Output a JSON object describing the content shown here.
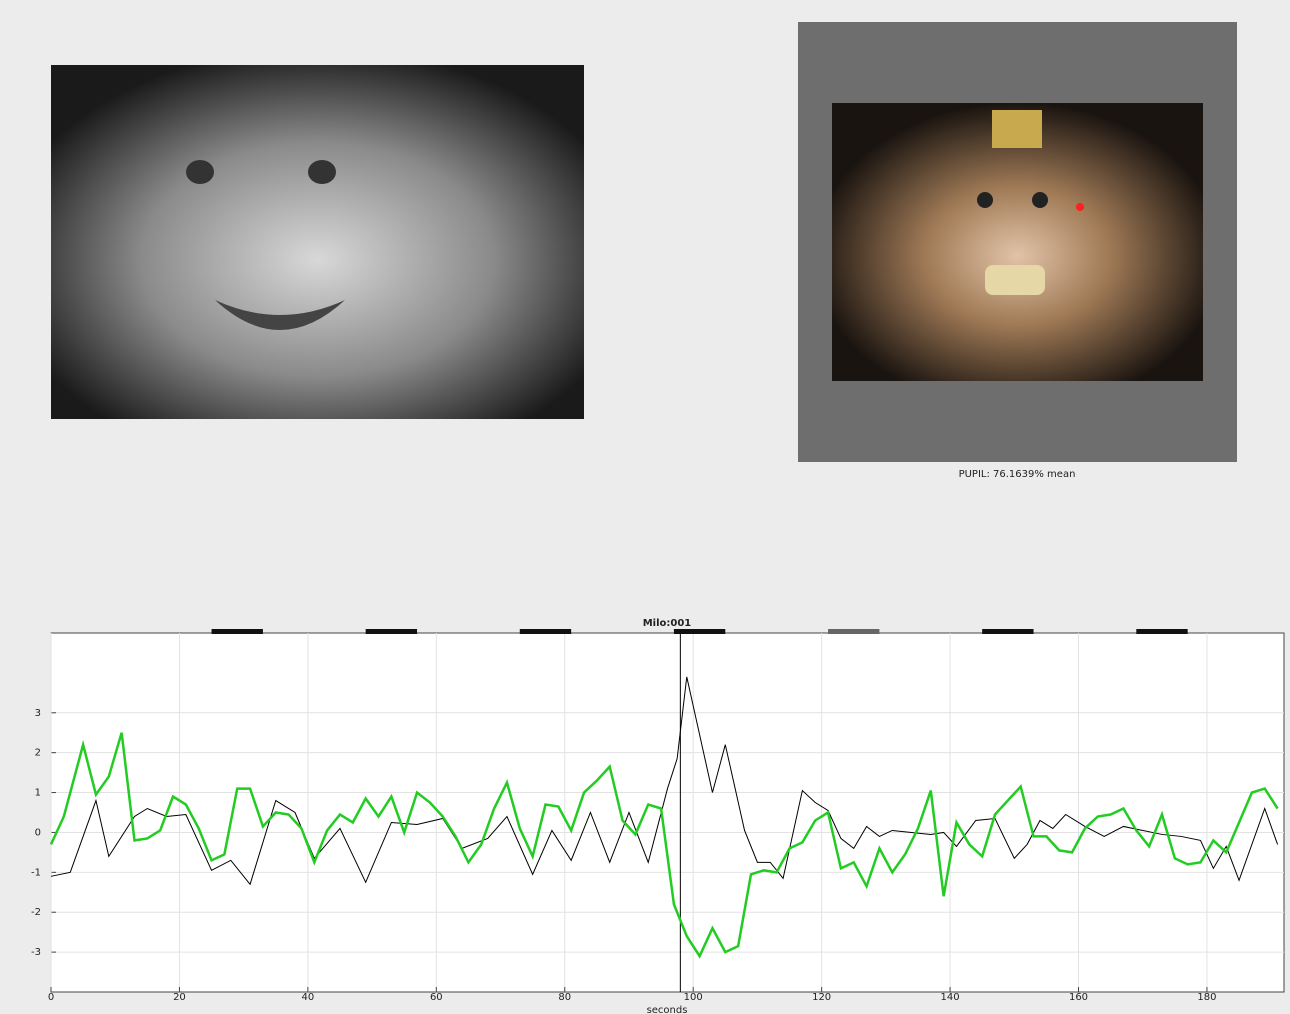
{
  "pupil_label": "PUPIL: 76.1639% mean",
  "chart_data": {
    "type": "line",
    "title": "Milo:001",
    "x_label": "seconds",
    "xlim": [
      0,
      192
    ],
    "ylim": [
      -4,
      5
    ],
    "xticks": [
      0,
      20,
      40,
      60,
      80,
      100,
      120,
      140,
      160,
      180
    ],
    "yticks": [
      -3,
      -2,
      -1,
      0,
      1,
      2,
      3
    ],
    "grid": true,
    "marker_x": 98,
    "stimuli": [
      {
        "start": 25,
        "end": 33,
        "color": "#111111"
      },
      {
        "start": 49,
        "end": 57,
        "color": "#111111"
      },
      {
        "start": 73,
        "end": 81,
        "color": "#111111"
      },
      {
        "start": 97,
        "end": 105,
        "color": "#111111"
      },
      {
        "start": 121,
        "end": 129,
        "color": "#666666"
      },
      {
        "start": 145,
        "end": 153,
        "color": "#111111"
      },
      {
        "start": 169,
        "end": 177,
        "color": "#111111"
      }
    ],
    "series": [
      {
        "color": "#000000",
        "x": [
          0,
          3,
          7,
          9,
          13,
          15,
          18,
          21,
          25,
          28,
          31,
          35,
          38,
          41,
          45,
          49,
          53,
          57,
          61,
          64,
          68,
          71,
          75,
          78,
          81,
          84,
          87,
          90,
          93,
          96,
          97.5,
          99,
          103,
          105,
          108,
          110,
          112,
          114,
          117,
          119,
          121,
          123,
          125,
          127,
          129,
          131,
          134,
          137,
          139,
          141,
          144,
          147,
          150,
          152,
          154,
          156,
          158,
          161,
          164,
          167,
          170,
          173,
          176,
          179,
          181,
          183,
          185,
          189,
          191
        ],
        "values": [
          -1.1,
          -1.0,
          0.8,
          -0.6,
          0.4,
          0.6,
          0.4,
          0.45,
          -0.95,
          -0.7,
          -1.3,
          0.8,
          0.5,
          -0.65,
          0.1,
          -1.25,
          0.25,
          0.2,
          0.35,
          -0.4,
          -0.15,
          0.4,
          -1.05,
          0.05,
          -0.7,
          0.5,
          -0.75,
          0.5,
          -0.75,
          1.1,
          1.85,
          3.9,
          1.0,
          2.2,
          0.05,
          -0.75,
          -0.75,
          -1.15,
          1.05,
          0.75,
          0.55,
          -0.15,
          -0.4,
          0.15,
          -0.1,
          0.05,
          0.0,
          -0.05,
          0.0,
          -0.35,
          0.3,
          0.35,
          -0.65,
          -0.3,
          0.3,
          0.1,
          0.45,
          0.15,
          -0.1,
          0.15,
          0.05,
          -0.05,
          -0.1,
          -0.2,
          -0.9,
          -0.35,
          -1.2,
          0.6,
          -0.3
        ]
      },
      {
        "color": "#22cc22",
        "x": [
          0,
          2,
          5,
          7,
          9,
          11,
          13,
          15,
          17,
          19,
          21,
          23,
          25,
          27,
          29,
          31,
          33,
          35,
          37,
          39,
          41,
          43,
          45,
          47,
          49,
          51,
          53,
          55,
          57,
          59,
          61,
          63,
          65,
          67,
          69,
          71,
          73,
          75,
          77,
          79,
          81,
          83,
          85,
          87,
          89,
          91,
          93,
          95,
          97,
          99,
          101,
          103,
          105,
          107,
          109,
          111,
          113,
          115,
          117,
          119,
          121,
          123,
          125,
          127,
          129,
          131,
          133,
          135,
          137,
          139,
          141,
          143,
          145,
          147,
          149,
          151,
          153,
          155,
          157,
          159,
          161,
          163,
          165,
          167,
          169,
          171,
          173,
          175,
          177,
          179,
          181,
          183,
          185,
          187,
          189,
          191
        ],
        "values": [
          -0.3,
          0.4,
          2.2,
          0.95,
          1.4,
          2.5,
          -0.2,
          -0.15,
          0.05,
          0.9,
          0.7,
          0.1,
          -0.7,
          -0.55,
          1.1,
          1.1,
          0.15,
          0.5,
          0.45,
          0.1,
          -0.75,
          0.05,
          0.45,
          0.25,
          0.85,
          0.4,
          0.9,
          0,
          1.0,
          0.75,
          0.4,
          -0.1,
          -0.75,
          -0.3,
          0.6,
          1.25,
          0.1,
          -0.6,
          0.7,
          0.65,
          0.05,
          1.0,
          1.3,
          1.65,
          0.3,
          -0.05,
          0.7,
          0.6,
          -1.8,
          -2.6,
          -3.1,
          -2.4,
          -3.0,
          -2.85,
          -1.05,
          -0.95,
          -1.0,
          -0.4,
          -0.25,
          0.3,
          0.5,
          -0.9,
          -0.75,
          -1.35,
          -0.4,
          -1.0,
          -0.55,
          0.1,
          1.05,
          -1.6,
          0.25,
          -0.3,
          -0.6,
          0.45,
          0.8,
          1.15,
          -0.1,
          -0.1,
          -0.45,
          -0.5,
          0.1,
          0.4,
          0.45,
          0.6,
          0.05,
          -0.35,
          0.45,
          -0.65,
          -0.8,
          -0.75,
          -0.2,
          -0.5,
          0.25,
          1.0,
          1.1,
          0.6
        ]
      }
    ]
  }
}
